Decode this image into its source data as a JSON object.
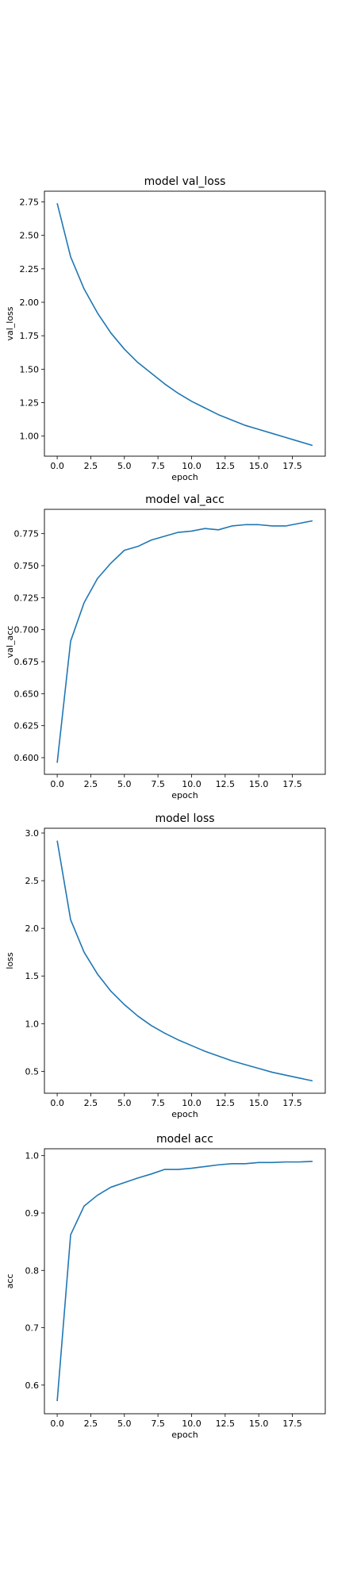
{
  "chart_data": [
    {
      "type": "line",
      "title": "model val_loss",
      "xlabel": "epoch",
      "ylabel": "val_loss",
      "xlim": [
        -0.95,
        19.95
      ],
      "ylim": [
        0.85,
        2.83
      ],
      "xticks": [
        0.0,
        2.5,
        5.0,
        7.5,
        10.0,
        12.5,
        15.0,
        17.5
      ],
      "xtick_labels": [
        "0.0",
        "2.5",
        "5.0",
        "7.5",
        "10.0",
        "12.5",
        "15.0",
        "17.5"
      ],
      "yticks": [
        1.0,
        1.25,
        1.5,
        1.75,
        2.0,
        2.25,
        2.5,
        2.75
      ],
      "ytick_labels": [
        "1.00",
        "1.25",
        "1.50",
        "1.75",
        "2.00",
        "2.25",
        "2.50",
        "2.75"
      ],
      "grid": false,
      "color": "#1f77b4",
      "series": [
        {
          "x": [
            0,
            1,
            2,
            3,
            4,
            5,
            6,
            7,
            8,
            9,
            10,
            11,
            12,
            13,
            14,
            15,
            16,
            17,
            18,
            19
          ],
          "values": [
            2.74,
            2.34,
            2.1,
            1.92,
            1.77,
            1.65,
            1.55,
            1.47,
            1.39,
            1.32,
            1.26,
            1.21,
            1.16,
            1.12,
            1.08,
            1.05,
            1.02,
            0.99,
            0.96,
            0.93
          ]
        }
      ]
    },
    {
      "type": "line",
      "title": "model val_acc",
      "xlabel": "epoch",
      "ylabel": "val_acc",
      "xlim": [
        -0.95,
        19.95
      ],
      "ylim": [
        0.587,
        0.794
      ],
      "xticks": [
        0.0,
        2.5,
        5.0,
        7.5,
        10.0,
        12.5,
        15.0,
        17.5
      ],
      "xtick_labels": [
        "0.0",
        "2.5",
        "5.0",
        "7.5",
        "10.0",
        "12.5",
        "15.0",
        "17.5"
      ],
      "yticks": [
        0.6,
        0.625,
        0.65,
        0.675,
        0.7,
        0.725,
        0.75,
        0.775
      ],
      "ytick_labels": [
        "0.600",
        "0.625",
        "0.650",
        "0.675",
        "0.700",
        "0.725",
        "0.750",
        "0.775"
      ],
      "grid": false,
      "color": "#1f77b4",
      "series": [
        {
          "x": [
            0,
            1,
            2,
            3,
            4,
            5,
            6,
            7,
            8,
            9,
            10,
            11,
            12,
            13,
            14,
            15,
            16,
            17,
            18,
            19
          ],
          "values": [
            0.596,
            0.691,
            0.721,
            0.74,
            0.752,
            0.762,
            0.765,
            0.77,
            0.773,
            0.776,
            0.777,
            0.779,
            0.778,
            0.781,
            0.782,
            0.782,
            0.781,
            0.781,
            0.783,
            0.785
          ]
        }
      ]
    },
    {
      "type": "line",
      "title": "model loss",
      "xlabel": "epoch",
      "ylabel": "loss",
      "xlim": [
        -0.95,
        19.95
      ],
      "ylim": [
        0.27,
        3.05
      ],
      "xticks": [
        0.0,
        2.5,
        5.0,
        7.5,
        10.0,
        12.5,
        15.0,
        17.5
      ],
      "xtick_labels": [
        "0.0",
        "2.5",
        "5.0",
        "7.5",
        "10.0",
        "12.5",
        "15.0",
        "17.5"
      ],
      "yticks": [
        0.5,
        1.0,
        1.5,
        2.0,
        2.5,
        3.0
      ],
      "ytick_labels": [
        "0.5",
        "1.0",
        "1.5",
        "2.0",
        "2.5",
        "3.0"
      ],
      "grid": false,
      "color": "#1f77b4",
      "series": [
        {
          "x": [
            0,
            1,
            2,
            3,
            4,
            5,
            6,
            7,
            8,
            9,
            10,
            11,
            12,
            13,
            14,
            15,
            16,
            17,
            18,
            19
          ],
          "values": [
            2.92,
            2.09,
            1.75,
            1.52,
            1.34,
            1.2,
            1.08,
            0.98,
            0.9,
            0.83,
            0.77,
            0.71,
            0.66,
            0.61,
            0.57,
            0.53,
            0.49,
            0.46,
            0.43,
            0.4
          ]
        }
      ]
    },
    {
      "type": "line",
      "title": "model acc",
      "xlabel": "epoch",
      "ylabel": "acc",
      "xlim": [
        -0.95,
        19.95
      ],
      "ylim": [
        0.55,
        1.012
      ],
      "xticks": [
        0.0,
        2.5,
        5.0,
        7.5,
        10.0,
        12.5,
        15.0,
        17.5
      ],
      "xtick_labels": [
        "0.0",
        "2.5",
        "5.0",
        "7.5",
        "10.0",
        "12.5",
        "15.0",
        "17.5"
      ],
      "yticks": [
        0.6,
        0.7,
        0.8,
        0.9,
        1.0
      ],
      "ytick_labels": [
        "0.6",
        "0.7",
        "0.8",
        "0.9",
        "1.0"
      ],
      "grid": false,
      "color": "#1f77b4",
      "series": [
        {
          "x": [
            0,
            1,
            2,
            3,
            4,
            5,
            6,
            7,
            8,
            9,
            10,
            11,
            12,
            13,
            14,
            15,
            16,
            17,
            18,
            19
          ],
          "values": [
            0.572,
            0.862,
            0.912,
            0.931,
            0.945,
            0.953,
            0.961,
            0.968,
            0.976,
            0.976,
            0.978,
            0.981,
            0.984,
            0.986,
            0.986,
            0.988,
            0.988,
            0.989,
            0.989,
            0.99
          ]
        }
      ]
    }
  ]
}
